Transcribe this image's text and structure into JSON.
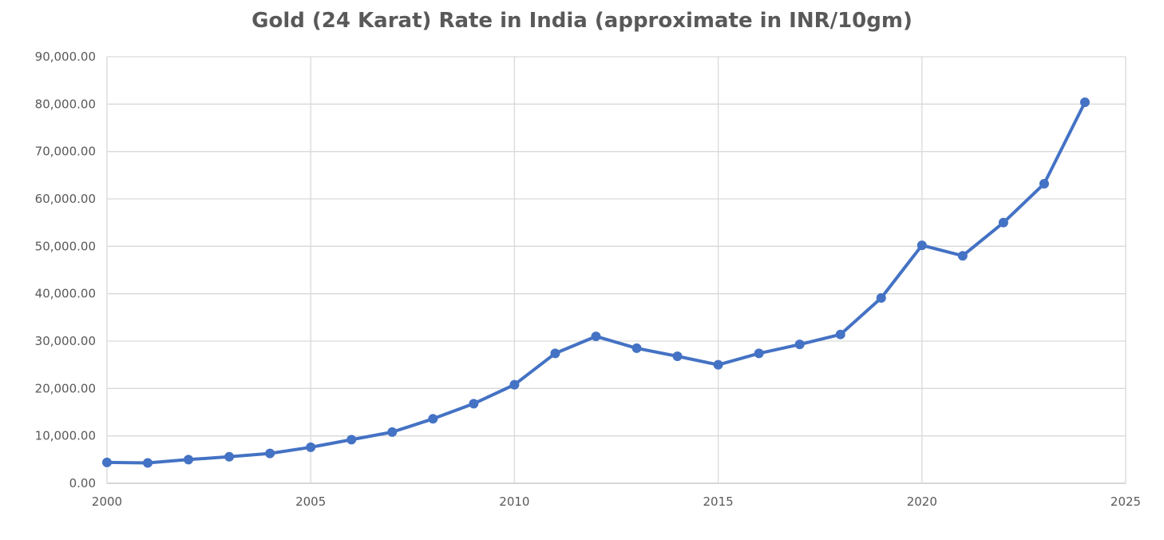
{
  "chart_data": {
    "type": "line",
    "title": "Gold (24 Karat) Rate in India (approximate in INR/10gm)",
    "xlabel": "",
    "ylabel": "",
    "xlim": [
      2000,
      2025
    ],
    "ylim": [
      0,
      90000
    ],
    "xticks": [
      2000,
      2005,
      2010,
      2015,
      2020,
      2025
    ],
    "yticks": [
      0,
      10000,
      20000,
      30000,
      40000,
      50000,
      60000,
      70000,
      80000,
      90000
    ],
    "ytick_labels": [
      "0.00",
      "10,000.00",
      "20,000.00",
      "30,000.00",
      "40,000.00",
      "50,000.00",
      "60,000.00",
      "70,000.00",
      "80,000.00",
      "90,000.00"
    ],
    "grid": true,
    "legend": "none",
    "color": "#4472C4",
    "markers": true,
    "x": [
      2000,
      2001,
      2002,
      2003,
      2004,
      2005,
      2006,
      2007,
      2008,
      2009,
      2010,
      2011,
      2012,
      2013,
      2014,
      2015,
      2016,
      2017,
      2018,
      2019,
      2020,
      2021,
      2022,
      2023,
      2024
    ],
    "values": [
      4400,
      4300,
      5000,
      5600,
      6300,
      7600,
      9200,
      10800,
      13600,
      16800,
      20800,
      27400,
      31000,
      28500,
      26800,
      25000,
      27400,
      29300,
      31400,
      39100,
      50200,
      48000,
      55000,
      63200,
      80400
    ]
  }
}
